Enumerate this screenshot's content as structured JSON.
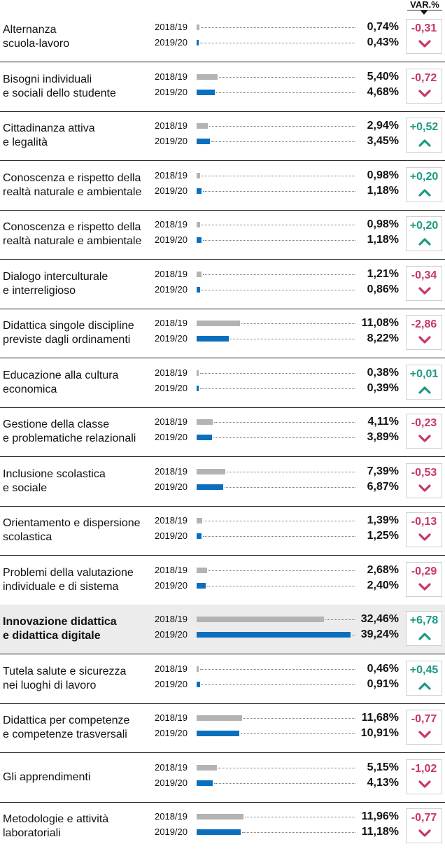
{
  "header": {
    "var_label": "VAR.%"
  },
  "colors": {
    "bar_2018": "#b3b3b3",
    "bar_2019": "#0a6fbd",
    "positive": "#1a9a82",
    "negative": "#c8356b"
  },
  "chart_data": {
    "type": "bar",
    "orientation": "horizontal",
    "title": "",
    "series_labels": [
      "2018/19",
      "2019/20"
    ],
    "change_label": "VAR.%",
    "xlim": [
      0,
      40
    ],
    "rows": [
      {
        "label": "Alternanza scuola-lavoro",
        "label_lines": [
          "Alternanza",
          "scuola-lavoro"
        ],
        "y1_label": "2018/19",
        "y2_label": "2019/20",
        "v1": 0.74,
        "v2": 0.43,
        "v1_text": "0,74%",
        "v2_text": "0,43%",
        "change": -0.31,
        "change_text": "-0,31",
        "highlight": false
      },
      {
        "label": "Bisogni individuali e sociali dello studente",
        "label_lines": [
          "Bisogni individuali",
          "e sociali dello studente"
        ],
        "y1_label": "2018/19",
        "y2_label": "2019/20",
        "v1": 5.4,
        "v2": 4.68,
        "v1_text": "5,40%",
        "v2_text": "4,68%",
        "change": -0.72,
        "change_text": "-0,72",
        "highlight": false
      },
      {
        "label": "Cittadinanza attiva e legalità",
        "label_lines": [
          "Cittadinanza attiva",
          "e legalità"
        ],
        "y1_label": "2018/19",
        "y2_label": "2019/20",
        "v1": 2.94,
        "v2": 3.45,
        "v1_text": "2,94%",
        "v2_text": "3,45%",
        "change": 0.52,
        "change_text": "+0,52",
        "highlight": false
      },
      {
        "label": "Conoscenza e rispetto della realtà naturale e ambientale",
        "label_lines": [
          "Conoscenza e rispetto della",
          "realtà naturale e ambientale"
        ],
        "y1_label": "2018/19",
        "y2_label": "2019/20",
        "v1": 0.98,
        "v2": 1.18,
        "v1_text": "0,98%",
        "v2_text": "1,18%",
        "change": 0.2,
        "change_text": "+0,20",
        "highlight": false
      },
      {
        "label": "Conoscenza e rispetto della realtà naturale e ambientale",
        "label_lines": [
          "Conoscenza e rispetto della",
          "realtà naturale e ambientale"
        ],
        "y1_label": "2018/19",
        "y2_label": "2019/20",
        "v1": 0.98,
        "v2": 1.18,
        "v1_text": "0,98%",
        "v2_text": "1,18%",
        "change": 0.2,
        "change_text": "+0,20",
        "highlight": false
      },
      {
        "label": "Dialogo interculturale e interreligioso",
        "label_lines": [
          "Dialogo interculturale",
          "e interreligioso"
        ],
        "y1_label": "2018/19",
        "y2_label": "2019/20",
        "v1": 1.21,
        "v2": 0.86,
        "v1_text": "1,21%",
        "v2_text": "0,86%",
        "change": -0.34,
        "change_text": "-0,34",
        "highlight": false
      },
      {
        "label": "Didattica singole discipline previste dagli ordinamenti",
        "label_lines": [
          "Didattica singole discipline",
          "previste dagli ordinamenti"
        ],
        "y1_label": "2018/19",
        "y2_label": "2019/20",
        "v1": 11.08,
        "v2": 8.22,
        "v1_text": "11,08%",
        "v2_text": "8,22%",
        "change": -2.86,
        "change_text": "-2,86",
        "highlight": false
      },
      {
        "label": "Educazione alla cultura economica",
        "label_lines": [
          "Educazione alla cultura",
          "economica"
        ],
        "y1_label": "2018/19",
        "y2_label": "2019/20",
        "v1": 0.38,
        "v2": 0.39,
        "v1_text": "0,38%",
        "v2_text": "0,39%",
        "change": 0.01,
        "change_text": "+0,01",
        "highlight": false
      },
      {
        "label": "Gestione della classe e problematiche relazionali",
        "label_lines": [
          "Gestione della classe",
          "e problematiche relazionali"
        ],
        "y1_label": "2018/19",
        "y2_label": "2019/20",
        "v1": 4.11,
        "v2": 3.89,
        "v1_text": "4,11%",
        "v2_text": "3,89%",
        "change": -0.23,
        "change_text": "-0,23",
        "highlight": false
      },
      {
        "label": "Inclusione scolastica e sociale",
        "label_lines": [
          "Inclusione scolastica",
          "e sociale"
        ],
        "y1_label": "2018/19",
        "y2_label": "2019/20",
        "v1": 7.39,
        "v2": 6.87,
        "v1_text": "7,39%",
        "v2_text": "6,87%",
        "change": -0.53,
        "change_text": "-0,53",
        "highlight": false
      },
      {
        "label": "Orientamento e dispersione scolastica",
        "label_lines": [
          "Orientamento e dispersione",
          "scolastica"
        ],
        "y1_label": "2018/19",
        "y2_label": "2019/20",
        "v1": 1.39,
        "v2": 1.25,
        "v1_text": "1,39%",
        "v2_text": "1,25%",
        "change": -0.13,
        "change_text": "-0,13",
        "highlight": false
      },
      {
        "label": "Problemi della valutazione individuale e di sistema",
        "label_lines": [
          "Problemi della valutazione",
          "individuale e di sistema"
        ],
        "y1_label": "2018/19",
        "y2_label": "2019/20",
        "v1": 2.68,
        "v2": 2.4,
        "v1_text": "2,68%",
        "v2_text": "2,40%",
        "change": -0.29,
        "change_text": "-0,29",
        "highlight": false
      },
      {
        "label": "Innovazione didattica e didattica digitale",
        "label_lines": [
          "Innovazione didattica",
          "e didattica digitale"
        ],
        "y1_label": "2018/19",
        "y2_label": "2019/20",
        "v1": 32.46,
        "v2": 39.24,
        "v1_text": "32,46%",
        "v2_text": "39,24%",
        "change": 6.78,
        "change_text": "+6,78",
        "highlight": true
      },
      {
        "label": "Tutela salute e sicurezza nei luoghi di lavoro",
        "label_lines": [
          "Tutela salute e sicurezza",
          "nei luoghi di lavoro"
        ],
        "y1_label": "2018/19",
        "y2_label": "2019/20",
        "v1": 0.46,
        "v2": 0.91,
        "v1_text": "0,46%",
        "v2_text": "0,91%",
        "change": 0.45,
        "change_text": "+0,45",
        "highlight": false
      },
      {
        "label": "Didattica per competenze e competenze trasversali",
        "label_lines": [
          "Didattica per competenze",
          "e competenze trasversali"
        ],
        "y1_label": "2018/19",
        "y2_label": "2019/20",
        "v1": 11.68,
        "v2": 10.91,
        "v1_text": "11,68%",
        "v2_text": "10,91%",
        "change": -0.77,
        "change_text": "-0,77",
        "highlight": false
      },
      {
        "label": "Gli apprendimenti",
        "label_lines": [
          "Gli apprendimenti"
        ],
        "y1_label": "2018/19",
        "y2_label": "2019/20",
        "v1": 5.15,
        "v2": 4.13,
        "v1_text": "5,15%",
        "v2_text": "4,13%",
        "change": -1.02,
        "change_text": "-1,02",
        "highlight": false
      },
      {
        "label": "Metodologie e attività laboratoriali",
        "label_lines": [
          "Metodologie e attività",
          "laboratoriali"
        ],
        "y1_label": "2018/19",
        "y2_label": "2019/20",
        "v1": 11.96,
        "v2": 11.18,
        "v1_text": "11,96%",
        "v2_text": "11,18%",
        "change": -0.77,
        "change_text": "-0,77",
        "highlight": false
      }
    ]
  }
}
